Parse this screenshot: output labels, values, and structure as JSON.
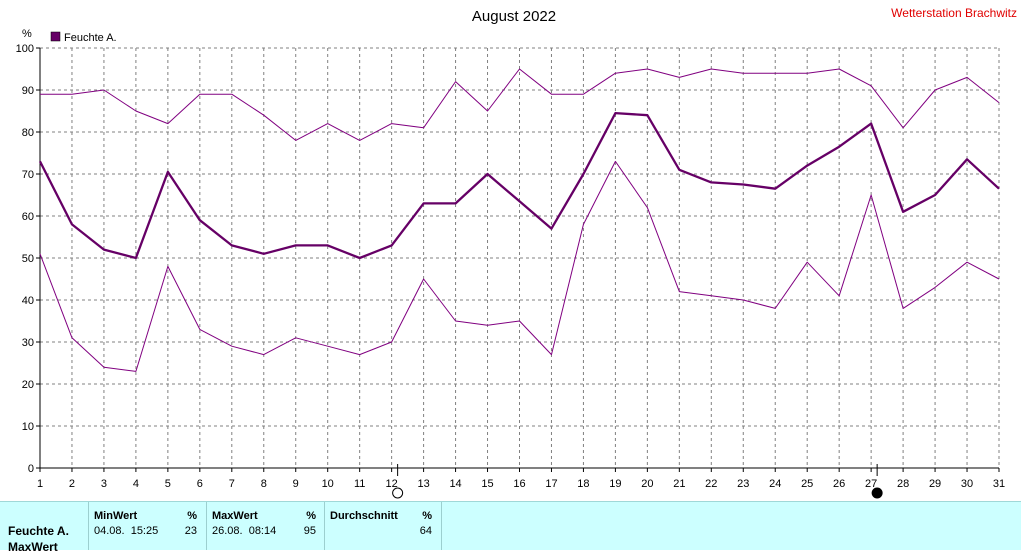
{
  "title": "August 2022",
  "station": "Wetterstation Brachwitz",
  "unit": "%",
  "legend": {
    "label": "Feuchte A.",
    "color": "#660066"
  },
  "colors": {
    "line": "#800080",
    "avg_line": "#660066",
    "grid": "#808080",
    "table_bg": "#ccffff"
  },
  "chart_data": {
    "type": "line",
    "x": [
      1,
      2,
      3,
      4,
      5,
      6,
      7,
      8,
      9,
      10,
      11,
      12,
      13,
      14,
      15,
      16,
      17,
      18,
      19,
      20,
      21,
      22,
      23,
      24,
      25,
      26,
      27,
      28,
      29,
      30,
      31
    ],
    "xlim": [
      1,
      31
    ],
    "ylim": [
      0,
      100
    ],
    "yticks": [
      0,
      10,
      20,
      30,
      40,
      50,
      60,
      70,
      80,
      90,
      100
    ],
    "ylabel": "%",
    "grid": true,
    "legend_position": "top-left",
    "moon_markers": [
      {
        "day": 12,
        "phase": "full"
      },
      {
        "day": 27,
        "phase": "new"
      }
    ],
    "series": [
      {
        "name": "Feuchte A.",
        "role": "avg",
        "values": [
          73,
          58,
          52,
          50,
          70.5,
          59,
          53,
          51,
          53,
          53,
          50,
          53,
          63,
          63,
          70,
          63.5,
          57,
          70,
          84.5,
          84,
          71,
          68,
          67.5,
          66.5,
          72,
          76.5,
          82,
          61,
          65,
          73.5,
          66.5
        ]
      },
      {
        "role": "max",
        "values": [
          89,
          89,
          90,
          85,
          82,
          89,
          89,
          84,
          78,
          82,
          78,
          82,
          81,
          92,
          85,
          95,
          89,
          89,
          94,
          95,
          93,
          95,
          94,
          94,
          94,
          95,
          91,
          81,
          90,
          93,
          87
        ]
      },
      {
        "role": "min",
        "values": [
          51,
          31,
          24,
          23,
          48,
          33,
          29,
          27,
          31,
          29,
          27,
          30,
          45,
          35,
          34,
          35,
          27,
          58,
          73,
          62,
          42,
          41,
          40,
          38,
          49,
          41,
          65,
          38,
          43,
          49,
          45
        ]
      }
    ]
  },
  "stats": {
    "row_label": "Feuchte A.",
    "row_label_2": "MaxWert",
    "min": {
      "header": "MinWert",
      "unit": "%",
      "time": "04.08.  15:25",
      "value": "23"
    },
    "max": {
      "header": "MaxWert",
      "unit": "%",
      "time": "26.08.  08:14",
      "value": "95"
    },
    "avg": {
      "header": "Durchschnitt",
      "unit": "%",
      "value": "64"
    }
  }
}
